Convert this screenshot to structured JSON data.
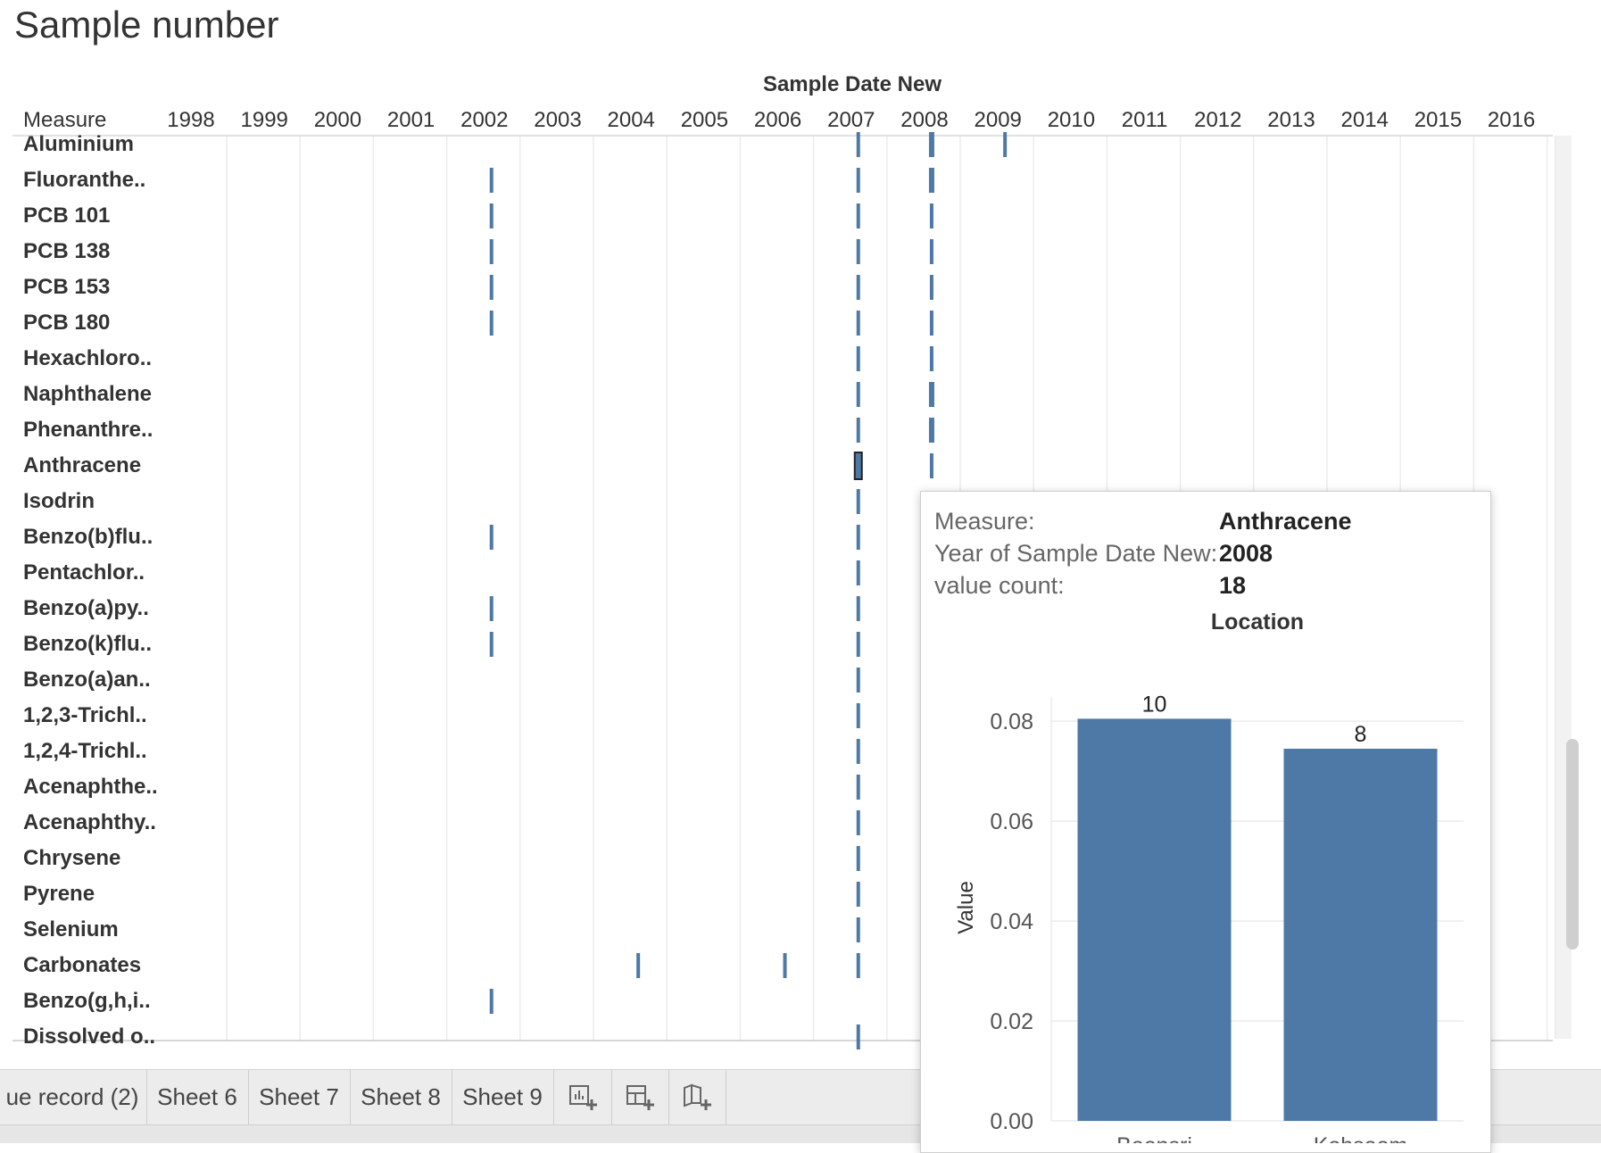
{
  "sheet": {
    "title": "Sample number"
  },
  "chart_data": [
    {
      "type": "gantt",
      "title": "",
      "column_header_title": "Sample Date New",
      "row_header_title": "Measure",
      "years": [
        "1998",
        "1999",
        "2000",
        "2001",
        "2002",
        "2003",
        "2004",
        "2005",
        "2006",
        "2007",
        "2008",
        "2009",
        "2010",
        "2011",
        "2012",
        "2013",
        "2014",
        "2015",
        "2016"
      ],
      "measures": [
        "Aluminium",
        "Fluoranthe..",
        "PCB 101",
        "PCB 138",
        "PCB 153",
        "PCB 180",
        "Hexachloro..",
        "Naphthalene",
        "Phenanthre..",
        "Anthracene",
        "Isodrin",
        "Benzo(b)flu..",
        "Pentachlor..",
        "Benzo(a)py..",
        "Benzo(k)flu..",
        "Benzo(a)an..",
        "1,2,3-Trichl..",
        "1,2,4-Trichl..",
        "Acenaphthe..",
        "Acenaphthy..",
        "Chrysene",
        "Pyrene",
        "Selenium",
        "Carbonates",
        "Benzo(g,h,i..",
        "Dissolved o.."
      ],
      "marks": [
        {
          "measure": "Aluminium",
          "date": "2007-08",
          "width": "thin"
        },
        {
          "measure": "Aluminium",
          "date": "2008-08",
          "width": "thick"
        },
        {
          "measure": "Aluminium",
          "date": "2009-08",
          "width": "thin"
        },
        {
          "measure": "Fluoranthe..",
          "date": "2002-08",
          "width": "thin"
        },
        {
          "measure": "Fluoranthe..",
          "date": "2007-08",
          "width": "thin"
        },
        {
          "measure": "Fluoranthe..",
          "date": "2008-08",
          "width": "thick"
        },
        {
          "measure": "PCB 101",
          "date": "2002-08",
          "width": "thin"
        },
        {
          "measure": "PCB 101",
          "date": "2007-08",
          "width": "thin"
        },
        {
          "measure": "PCB 101",
          "date": "2008-08",
          "width": "thin"
        },
        {
          "measure": "PCB 138",
          "date": "2002-08",
          "width": "thin"
        },
        {
          "measure": "PCB 138",
          "date": "2007-08",
          "width": "thin"
        },
        {
          "measure": "PCB 138",
          "date": "2008-08",
          "width": "thin"
        },
        {
          "measure": "PCB 153",
          "date": "2002-08",
          "width": "thin"
        },
        {
          "measure": "PCB 153",
          "date": "2007-08",
          "width": "thin"
        },
        {
          "measure": "PCB 153",
          "date": "2008-08",
          "width": "thin"
        },
        {
          "measure": "PCB 180",
          "date": "2002-08",
          "width": "thin"
        },
        {
          "measure": "PCB 180",
          "date": "2007-08",
          "width": "thin"
        },
        {
          "measure": "PCB 180",
          "date": "2008-08",
          "width": "thin"
        },
        {
          "measure": "Hexachloro..",
          "date": "2007-08",
          "width": "thin"
        },
        {
          "measure": "Hexachloro..",
          "date": "2008-08",
          "width": "thin"
        },
        {
          "measure": "Naphthalene",
          "date": "2007-08",
          "width": "thin"
        },
        {
          "measure": "Naphthalene",
          "date": "2008-08",
          "width": "thick"
        },
        {
          "measure": "Phenanthre..",
          "date": "2007-08",
          "width": "thin"
        },
        {
          "measure": "Phenanthre..",
          "date": "2008-08",
          "width": "thick"
        },
        {
          "measure": "Anthracene",
          "date": "2007-08",
          "width": "selected"
        },
        {
          "measure": "Anthracene",
          "date": "2008-08",
          "width": "thin"
        },
        {
          "measure": "Isodrin",
          "date": "2007-08",
          "width": "thin"
        },
        {
          "measure": "Benzo(b)flu..",
          "date": "2002-08",
          "width": "thin"
        },
        {
          "measure": "Benzo(b)flu..",
          "date": "2007-08",
          "width": "thin"
        },
        {
          "measure": "Pentachlor..",
          "date": "2007-08",
          "width": "thin"
        },
        {
          "measure": "Benzo(a)py..",
          "date": "2002-08",
          "width": "thin"
        },
        {
          "measure": "Benzo(a)py..",
          "date": "2007-08",
          "width": "thin"
        },
        {
          "measure": "Benzo(k)flu..",
          "date": "2002-08",
          "width": "thin"
        },
        {
          "measure": "Benzo(k)flu..",
          "date": "2007-08",
          "width": "thin"
        },
        {
          "measure": "Benzo(a)an..",
          "date": "2007-08",
          "width": "thin"
        },
        {
          "measure": "1,2,3-Trichl..",
          "date": "2007-08",
          "width": "thin"
        },
        {
          "measure": "1,2,4-Trichl..",
          "date": "2007-08",
          "width": "thin"
        },
        {
          "measure": "Acenaphthe..",
          "date": "2007-08",
          "width": "thin"
        },
        {
          "measure": "Acenaphthy..",
          "date": "2007-08",
          "width": "thin"
        },
        {
          "measure": "Chrysene",
          "date": "2007-08",
          "width": "thin"
        },
        {
          "measure": "Pyrene",
          "date": "2007-08",
          "width": "thin"
        },
        {
          "measure": "Selenium",
          "date": "2007-08",
          "width": "thin"
        },
        {
          "measure": "Carbonates",
          "date": "2004-08",
          "width": "thin"
        },
        {
          "measure": "Carbonates",
          "date": "2006-08",
          "width": "thin"
        },
        {
          "measure": "Carbonates",
          "date": "2007-08",
          "width": "thin"
        },
        {
          "measure": "Benzo(g,h,i..",
          "date": "2002-08",
          "width": "thin"
        },
        {
          "measure": "Dissolved o..",
          "date": "2007-08",
          "width": "thin"
        }
      ],
      "mark_color": "#4e79a7",
      "grid": true
    },
    {
      "type": "bar",
      "title": "Location",
      "categories": [
        "Boonsri",
        "Kohsoom"
      ],
      "values": [
        0.0805,
        0.0745
      ],
      "data_labels": [
        "10",
        "8"
      ],
      "ylabel": "Value",
      "ylim": [
        0,
        0.087
      ],
      "yticks": [
        "0.00",
        "0.02",
        "0.04",
        "0.06",
        "0.08"
      ],
      "color": "#4e79a7"
    }
  ],
  "tooltip": {
    "measure_label": "Measure:",
    "measure_value": "Anthracene",
    "year_label": "Year of Sample Date New:",
    "year_value": "2008",
    "count_label": "value count:",
    "count_value": "18"
  },
  "tabs": [
    {
      "label": "ue record (2)"
    },
    {
      "label": "Sheet 6"
    },
    {
      "label": "Sheet 7"
    },
    {
      "label": "Sheet 8"
    },
    {
      "label": "Sheet 9"
    }
  ],
  "tab_icons": [
    "new-worksheet-icon",
    "new-dashboard-icon",
    "new-story-icon"
  ]
}
